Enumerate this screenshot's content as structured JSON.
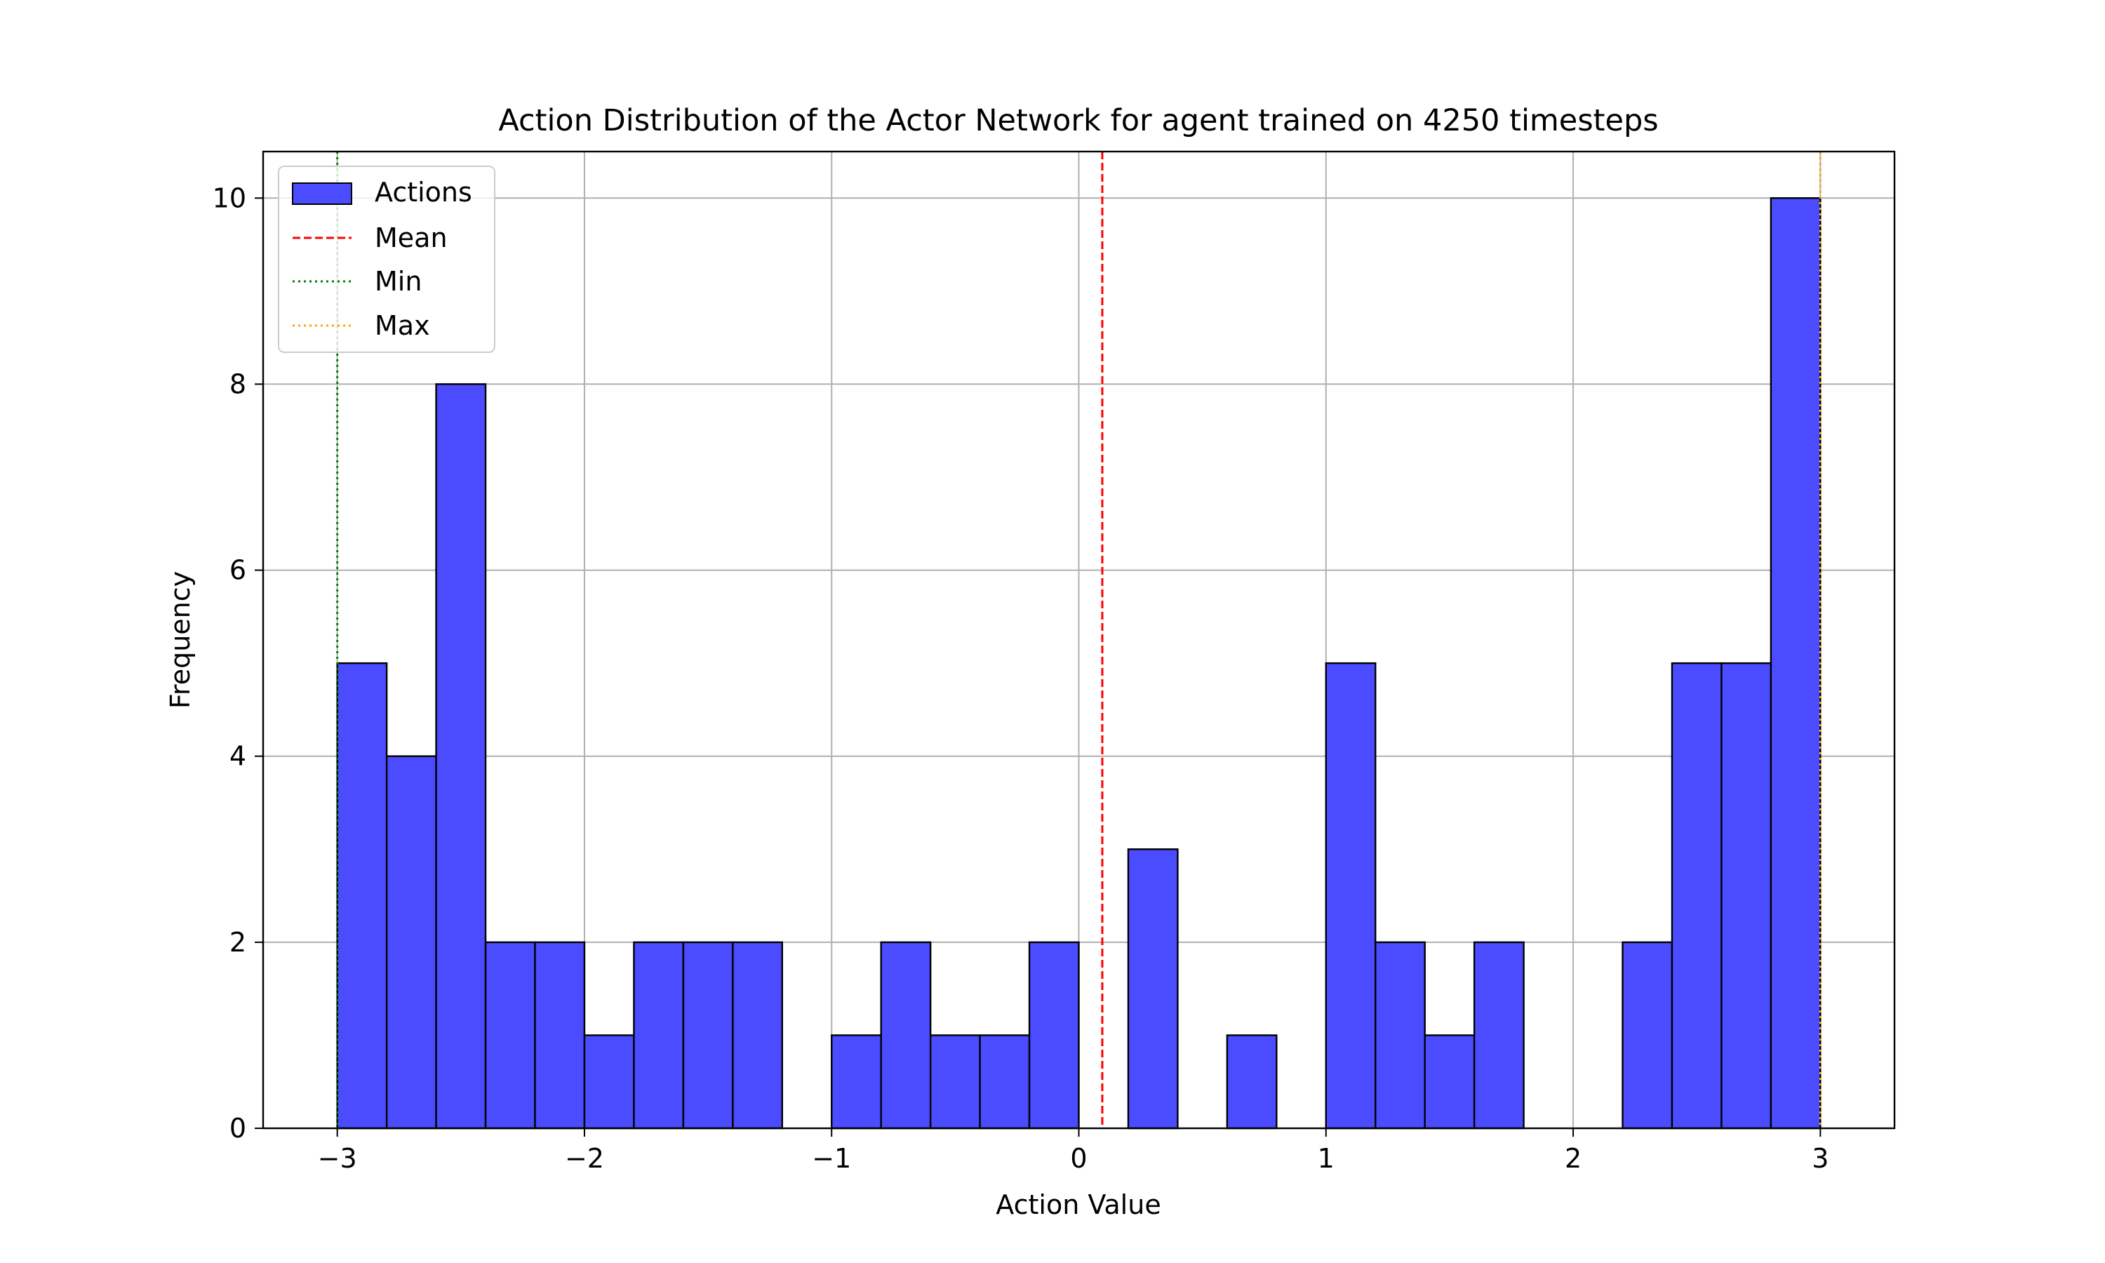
{
  "chart_data": {
    "type": "bar",
    "title": "Action Distribution of the Actor Network for agent trained on 4250 timesteps",
    "xlabel": "Action Value",
    "ylabel": "Frequency",
    "xlim": [
      -3.3,
      3.3
    ],
    "ylim": [
      0,
      10.5
    ],
    "xticks": [
      -3,
      -2,
      -1,
      0,
      1,
      2,
      3
    ],
    "xtick_labels": [
      "−3",
      "−2",
      "−1",
      "0",
      "1",
      "2",
      "3"
    ],
    "yticks": [
      0,
      2,
      4,
      6,
      8,
      10
    ],
    "ytick_labels": [
      "0",
      "2",
      "4",
      "6",
      "8",
      "10"
    ],
    "grid": true,
    "legend_position": "top-left",
    "bin_edges": [
      -3.0,
      -2.8,
      -2.6,
      -2.4,
      -2.2,
      -2.0,
      -1.8,
      -1.6,
      -1.4,
      -1.2,
      -1.0,
      -0.8,
      -0.6,
      -0.4,
      -0.2,
      0.0,
      0.2,
      0.4,
      0.6,
      0.8,
      1.0,
      1.2,
      1.4,
      1.6,
      1.8,
      2.0,
      2.2,
      2.4,
      2.6,
      2.8,
      3.0
    ],
    "counts": [
      5,
      4,
      8,
      2,
      2,
      1,
      2,
      2,
      2,
      0,
      1,
      2,
      1,
      1,
      2,
      0,
      3,
      0,
      1,
      0,
      5,
      2,
      1,
      2,
      0,
      0,
      2,
      5,
      5,
      10
    ],
    "series": [
      {
        "name": "Actions",
        "kind": "histogram",
        "color": "#4b4bff",
        "edgecolor": "#000000"
      },
      {
        "name": "Mean",
        "kind": "vline",
        "x": 0.095,
        "color": "#ff0000",
        "linestyle": "dashed"
      },
      {
        "name": "Min",
        "kind": "vline",
        "x": -3.0,
        "color": "#008000",
        "linestyle": "dotted"
      },
      {
        "name": "Max",
        "kind": "vline",
        "x": 3.0,
        "color": "#ffa500",
        "linestyle": "dotted"
      }
    ]
  }
}
